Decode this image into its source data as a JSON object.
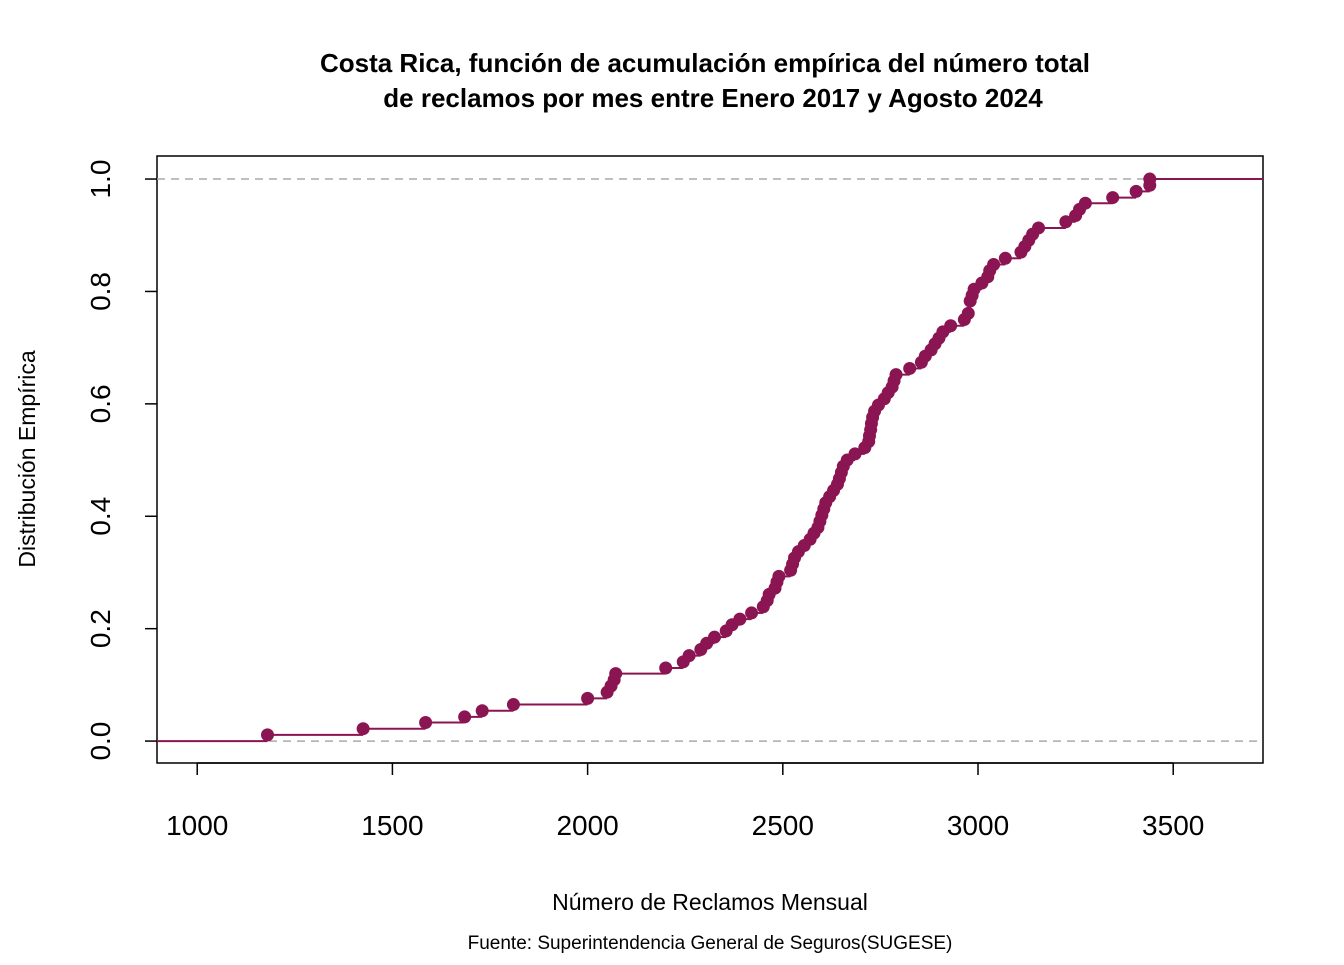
{
  "chart_data": {
    "type": "ecdf",
    "title": [
      "Costa Rica, función de acumulación empírica del número total",
      "de reclamos por mes entre Enero 2017 y Agosto 2024"
    ],
    "x_label": "Número de Reclamos Mensual",
    "y_label": "Distribución Empírica",
    "caption": "Fuente: Superintendencia General de Seguros(SUGESE)",
    "color": "#8b1552",
    "reference_lines": [
      0,
      1
    ],
    "xlim": [
      897,
      3730
    ],
    "ylim": [
      -0.039,
      1.041
    ],
    "xticks": [
      1000,
      1500,
      2000,
      2500,
      3000,
      3500
    ],
    "yticks": [
      {
        "value": 0,
        "label": "0.0"
      },
      {
        "value": 0.2,
        "label": "0.2"
      },
      {
        "value": 0.4,
        "label": "0.4"
      },
      {
        "value": 0.6,
        "label": "0.6"
      },
      {
        "value": 0.8,
        "label": "0.8"
      },
      {
        "value": 1,
        "label": "1.0"
      }
    ],
    "x": [
      1180,
      1425,
      1585,
      1685,
      1730,
      1810,
      2000,
      2050,
      2060,
      2068,
      2072,
      2200,
      2245,
      2260,
      2290,
      2305,
      2325,
      2355,
      2370,
      2390,
      2420,
      2450,
      2460,
      2465,
      2480,
      2485,
      2490,
      2520,
      2525,
      2530,
      2540,
      2555,
      2570,
      2580,
      2590,
      2595,
      2600,
      2605,
      2610,
      2620,
      2630,
      2640,
      2645,
      2650,
      2655,
      2665,
      2685,
      2710,
      2720,
      2722,
      2725,
      2727,
      2730,
      2735,
      2745,
      2760,
      2770,
      2780,
      2785,
      2790,
      2825,
      2855,
      2865,
      2880,
      2890,
      2900,
      2910,
      2930,
      2965,
      2975,
      2980,
      2985,
      2990,
      3010,
      3025,
      3030,
      3040,
      3070,
      3110,
      3120,
      3130,
      3140,
      3155,
      3225,
      3250,
      3260,
      3275,
      3345,
      3405,
      3440,
      3440
    ],
    "y": [
      0.011,
      0.022,
      0.033,
      0.043,
      0.054,
      0.065,
      0.076,
      0.087,
      0.098,
      0.109,
      0.12,
      0.13,
      0.141,
      0.152,
      0.163,
      0.174,
      0.185,
      0.196,
      0.207,
      0.217,
      0.228,
      0.239,
      0.25,
      0.261,
      0.272,
      0.283,
      0.293,
      0.304,
      0.315,
      0.326,
      0.337,
      0.348,
      0.359,
      0.37,
      0.38,
      0.391,
      0.402,
      0.413,
      0.424,
      0.435,
      0.446,
      0.457,
      0.467,
      0.478,
      0.489,
      0.5,
      0.511,
      0.522,
      0.533,
      0.543,
      0.554,
      0.565,
      0.576,
      0.587,
      0.598,
      0.609,
      0.62,
      0.63,
      0.641,
      0.652,
      0.663,
      0.674,
      0.685,
      0.696,
      0.707,
      0.717,
      0.728,
      0.739,
      0.75,
      0.761,
      0.783,
      0.793,
      0.804,
      0.815,
      0.826,
      0.837,
      0.848,
      0.859,
      0.87,
      0.88,
      0.891,
      0.902,
      0.913,
      0.924,
      0.935,
      0.946,
      0.957,
      0.967,
      0.978,
      0.989,
      1.0
    ]
  }
}
